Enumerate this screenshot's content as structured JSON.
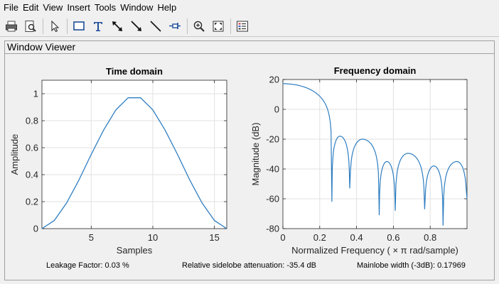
{
  "menu": [
    "File",
    "Edit",
    "View",
    "Insert",
    "Tools",
    "Window",
    "Help"
  ],
  "toolbar": {
    "buttons": [
      "print-icon",
      "print-preview-icon",
      "select-pointer-icon",
      "rectangle-icon",
      "text-icon",
      "double-arrow-icon",
      "arrow-icon",
      "line-icon",
      "pin-icon",
      "zoom-in-icon",
      "fit-view-icon",
      "legend-icon"
    ]
  },
  "panel": {
    "title": "Window Viewer"
  },
  "status": {
    "leakage": "Leakage Factor: 0.03 %",
    "sidelobe": "Relative sidelobe attenuation: -35.4 dB",
    "mainlobe": "Mainlobe width (-3dB): 0.17969"
  },
  "colors": {
    "line": "#2f7ec1"
  },
  "chart_data": [
    {
      "type": "line",
      "title": "Time domain",
      "xlabel": "Samples",
      "ylabel": "Amplitude",
      "xlim": [
        1,
        16
      ],
      "ylim": [
        0,
        1.1
      ],
      "xticks": [
        5,
        10,
        15
      ],
      "yticks": [
        0,
        0.2,
        0.4,
        0.6,
        0.8,
        1
      ],
      "ytick_labels": [
        "0",
        "0.2",
        "0.4",
        "0.6",
        "0.8",
        "1"
      ],
      "grid": true,
      "x": [
        1,
        2,
        3,
        4,
        5,
        6,
        7,
        8,
        9,
        10,
        11,
        12,
        13,
        14,
        15,
        16
      ],
      "y": [
        0,
        0.06,
        0.19,
        0.36,
        0.55,
        0.73,
        0.88,
        0.97,
        0.97,
        0.88,
        0.73,
        0.55,
        0.36,
        0.19,
        0.06,
        0
      ]
    },
    {
      "type": "line",
      "title": "Frequency domain",
      "xlabel": "Normalized Frequency  ( × π rad/sample)",
      "ylabel": "Magnitude (dB)",
      "xlim": [
        0,
        1
      ],
      "ylim": [
        -80,
        20
      ],
      "xticks": [
        0,
        0.2,
        0.4,
        0.6,
        0.8
      ],
      "xtick_labels": [
        "0",
        "0.2",
        "0.4",
        "0.6",
        "0.8"
      ],
      "yticks": [
        -80,
        -60,
        -40,
        -20,
        0,
        20
      ],
      "grid": true,
      "mainlobe_peak_db": 17.2,
      "nulls": [
        0.266,
        0.363,
        0.523,
        0.61,
        0.77,
        0.87
      ],
      "null_depths_db": [
        -62,
        -53,
        -71,
        -68,
        -67,
        -78
      ],
      "sidelobes": [
        {
          "x": 0.31,
          "db": -18
        },
        {
          "x": 0.432,
          "db": -20
        },
        {
          "x": 0.565,
          "db": -35
        },
        {
          "x": 0.68,
          "db": -29.5
        },
        {
          "x": 0.82,
          "db": -38
        },
        {
          "x": 0.945,
          "db": -35
        }
      ],
      "end_db": -60
    }
  ]
}
